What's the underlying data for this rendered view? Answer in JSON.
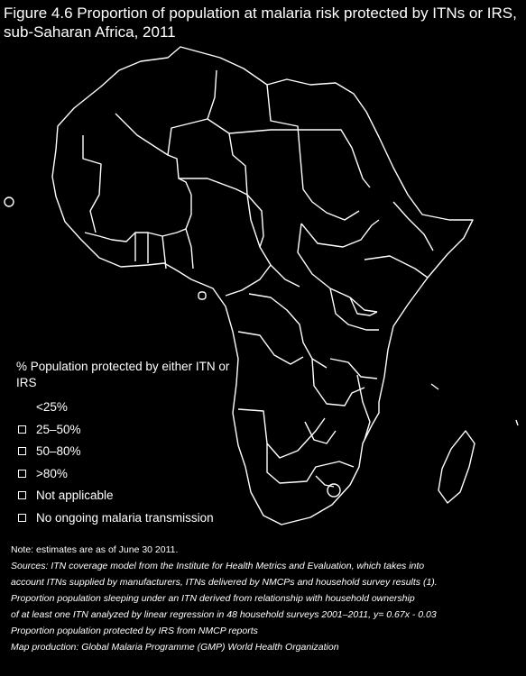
{
  "title": "Figure 4.6 Proportion of population at malaria risk protected by ITNs or IRS, sub-Saharan Africa, 2011",
  "legend": {
    "title": "% Population protected by either ITN or IRS",
    "items": [
      {
        "label": "<25%",
        "swatch": "none"
      },
      {
        "label": "25–50%",
        "swatch": "box"
      },
      {
        "label": "50–80%",
        "swatch": "box"
      },
      {
        "label": ">80%",
        "swatch": "box"
      },
      {
        "label": "Not applicable",
        "swatch": "box"
      },
      {
        "label": "No ongoing malaria transmission",
        "swatch": "box"
      }
    ]
  },
  "notes": [
    "Note: estimates are as of June 30 2011.",
    "Sources: ITN coverage model from the Institute for Health Metrics and Evaluation, which takes into",
    "account ITNs supplied by manufacturers, ITNs delivered by NMCPs and household survey results (1).",
    "Proportion population sleeping under an ITN derived from relationship with household ownership",
    "of at least one ITN analyzed by linear regression in 48 household surveys 2001–2011, y= 0.67x - 0.03",
    "Proportion population protected by IRS from NMCP reports",
    "Map production: Global Malaria Programme (GMP) World Health Organization"
  ],
  "colors": {
    "background": "#000000",
    "foreground": "#ffffff"
  }
}
